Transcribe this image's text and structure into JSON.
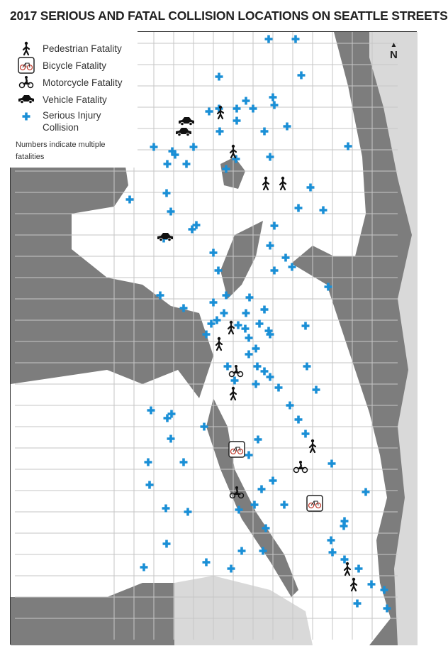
{
  "title": "2017 SERIOUS AND FATAL COLLISION LOCATIONS ON SEATTLE STREETS",
  "legend": {
    "items": [
      {
        "icon": "pedestrian-icon",
        "label": "Pedestrian Fatality"
      },
      {
        "icon": "bicycle-icon",
        "label": "Bicycle Fatality"
      },
      {
        "icon": "motorcycle-icon",
        "label": "Motorcycle Fatality"
      },
      {
        "icon": "car-icon",
        "label": "Vehicle Fatality"
      },
      {
        "icon": "plus-icon",
        "label": "Serious Injury Collision"
      }
    ],
    "note": "Numbers indicate multiple fatalities"
  },
  "north": "N",
  "colors": {
    "injury": "#1a8fd6",
    "water": "#7d7d7d",
    "land": "#ffffff",
    "outside_land": "#d9d9d9",
    "roads": "#bdbdbd"
  }
}
